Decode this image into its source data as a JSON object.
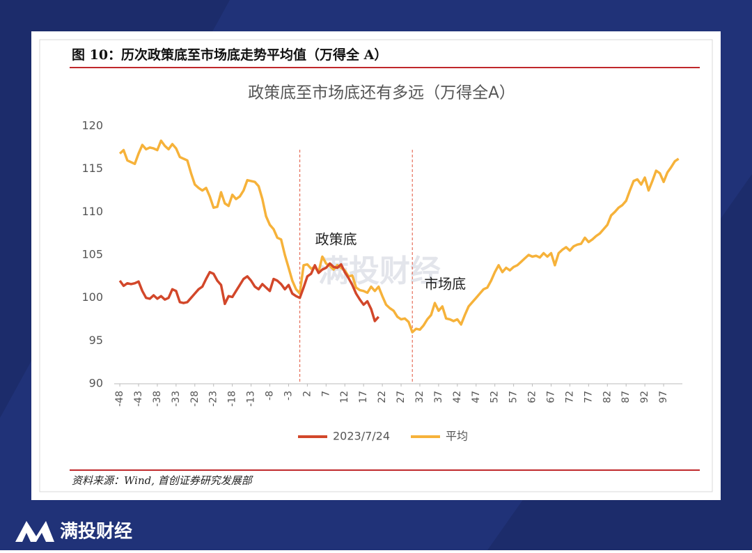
{
  "caption": "图 10：历次政策底至市场底走势平均值（万得全 A）",
  "source": "资料来源：Wind, 首创证券研究发展部",
  "watermark": "满投财经",
  "logo": "满投财经",
  "chart_data": {
    "type": "line",
    "title": "政策底至市场底还有多远（万得全A）",
    "x": [
      -48,
      -47,
      -46,
      -45,
      -44,
      -43,
      -42,
      -41,
      -40,
      -39,
      -38,
      -37,
      -36,
      -35,
      -34,
      -33,
      -32,
      -31,
      -30,
      -29,
      -28,
      -27,
      -26,
      -25,
      -24,
      -23,
      -22,
      -21,
      -20,
      -19,
      -18,
      -17,
      -16,
      -15,
      -14,
      -13,
      -12,
      -11,
      -10,
      -9,
      -8,
      -7,
      -6,
      -5,
      -4,
      -3,
      -2,
      -1,
      0,
      1,
      2,
      3,
      4,
      5,
      6,
      7,
      8,
      9,
      10,
      11,
      12,
      13,
      14,
      15,
      16,
      17,
      18,
      19,
      20,
      21,
      22,
      23,
      24,
      25,
      26,
      27,
      28,
      29,
      30,
      31,
      32,
      33,
      34,
      35,
      36,
      37,
      38,
      39,
      40,
      41,
      42,
      43,
      44,
      45,
      46,
      47,
      48,
      49,
      50,
      51,
      52,
      53,
      54,
      55,
      56,
      57,
      58,
      59,
      60,
      61,
      62,
      63,
      64,
      65,
      66,
      67,
      68,
      69,
      70,
      71,
      72,
      73,
      74,
      75,
      76,
      77,
      78,
      79,
      80,
      81,
      82,
      83,
      84,
      85,
      86,
      87,
      88,
      89,
      90,
      91,
      92,
      93,
      94,
      95,
      96,
      97,
      98,
      99,
      100,
      101
    ],
    "series": [
      {
        "name": "2023/7/24",
        "color": "#d2472a",
        "values": [
          102,
          101.4,
          101.7,
          101.6,
          101.7,
          101.9,
          100.8,
          100,
          99.9,
          100.3,
          99.9,
          100.2,
          99.8,
          100,
          101,
          100.8,
          99.5,
          99.4,
          99.5,
          100,
          100.5,
          101,
          101.3,
          102.2,
          103,
          102.8,
          102,
          101.5,
          99.3,
          100.2,
          100.1,
          100.8,
          101.5,
          102.2,
          102.5,
          102,
          101.3,
          101,
          101.6,
          101.2,
          100.8,
          102.2,
          102,
          101.6,
          101,
          101.5,
          100.5,
          100.2,
          100,
          101.2,
          102.5,
          102.8,
          103.8,
          102.9,
          103.3,
          103.5,
          104,
          103.6,
          103.5,
          103.9,
          103,
          102.3,
          101.5,
          100.5,
          99.8,
          99.2,
          99.6,
          98.7,
          97.3,
          97.8,
          null,
          null,
          null,
          null,
          null,
          null,
          null,
          null,
          null,
          null,
          null,
          null,
          null,
          null,
          null,
          null,
          null,
          null,
          null,
          null,
          null,
          null,
          null,
          null,
          null,
          null,
          null,
          null,
          null,
          null,
          null,
          null,
          null,
          null,
          null,
          null,
          null,
          null,
          null,
          null,
          null,
          null,
          null,
          null,
          null,
          null,
          null,
          null,
          null,
          null,
          null,
          null,
          null,
          null,
          null,
          null,
          null,
          null,
          null,
          null,
          null,
          null,
          null,
          null,
          null,
          null,
          null,
          null,
          null,
          null,
          null,
          null,
          null,
          null,
          null,
          null,
          null,
          null,
          null,
          null
        ]
      },
      {
        "name": "平均",
        "color": "#f6b23a",
        "values": [
          116.8,
          117.2,
          116,
          115.8,
          115.6,
          116.8,
          117.8,
          117.3,
          117.5,
          117.4,
          117.2,
          118.3,
          117.7,
          117.3,
          117.9,
          117.4,
          116.4,
          116.2,
          116,
          114.5,
          113.2,
          112.8,
          112.5,
          112.8,
          111.8,
          110.5,
          110.6,
          112.3,
          111,
          110.7,
          112,
          111.5,
          111.8,
          112.5,
          113.7,
          113.6,
          113.5,
          113,
          111.5,
          109.5,
          108.5,
          108,
          107,
          106.8,
          105,
          103.5,
          102,
          101,
          100.5,
          103.8,
          103.9,
          103.4,
          103.6,
          103,
          104.8,
          104,
          103.7,
          103.3,
          103.8,
          103.5,
          103.2,
          102.5,
          102.6,
          101.2,
          100.9,
          100.8,
          100.6,
          101.3,
          100.8,
          101.3,
          100.2,
          99.2,
          98.8,
          98.5,
          97.8,
          97.5,
          97.6,
          97.2,
          96,
          96.4,
          96.3,
          96.8,
          97.5,
          98,
          99.4,
          98.5,
          99,
          97.6,
          97.5,
          97.3,
          97.5,
          96.9,
          98,
          99,
          99.5,
          100,
          100.5,
          101,
          101.2,
          102,
          103,
          103.8,
          103,
          103.5,
          103.2,
          103.6,
          103.8,
          104.2,
          104.6,
          105,
          104.8,
          104.9,
          104.7,
          105.2,
          104.8,
          105.2,
          103.8,
          105.2,
          105.6,
          105.9,
          105.5,
          106,
          106.2,
          106.3,
          107,
          106.5,
          106.8,
          107.2,
          107.5,
          108,
          108.5,
          109.6,
          110,
          110.5,
          110.8,
          111.3,
          112.5,
          113.6,
          113.8,
          113.2,
          114,
          112.5,
          113.6,
          114.8,
          114.5,
          113.5,
          114.6,
          115.2,
          115.9,
          116.2
        ]
      }
    ],
    "xlim": [
      -49.5,
      102
    ],
    "xticks": [
      -48,
      -43,
      -38,
      -33,
      -28,
      -23,
      -18,
      -13,
      -8,
      -3,
      2,
      7,
      12,
      17,
      22,
      27,
      32,
      37,
      42,
      47,
      52,
      57,
      62,
      67,
      72,
      77,
      82,
      87,
      92,
      97
    ],
    "ylim": [
      90,
      120
    ],
    "yticks": [
      90,
      95,
      100,
      105,
      110,
      115,
      120
    ],
    "grid": false,
    "legend": "bottom",
    "annotations": [
      {
        "x": 0,
        "label": "政策底"
      },
      {
        "x": 30,
        "label": "市场底"
      }
    ]
  }
}
